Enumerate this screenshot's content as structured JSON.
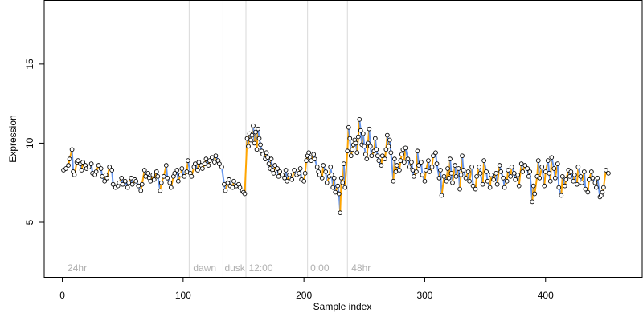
{
  "chart_data": {
    "type": "scatter",
    "xlabel": "Sample index",
    "ylabel": "Expression",
    "xlim": [
      -15,
      480
    ],
    "ylim": [
      1.5,
      19
    ],
    "x_ticks": [
      0,
      100,
      200,
      300,
      400
    ],
    "y_ticks": [
      5,
      10,
      15
    ],
    "colors": {
      "up": "#FFA500",
      "down": "#6495ED",
      "flat": "#A0A0A0",
      "point_fill": "#FFFFFF",
      "point_stroke": "#000000",
      "vline": "#D9D9D9",
      "annotation": "#B0B0B0"
    },
    "vertical_lines": [
      105,
      133,
      152,
      203,
      236
    ],
    "annotations": [
      {
        "x": 3,
        "label": "24hr"
      },
      {
        "x": 107,
        "label": "dawn"
      },
      {
        "x": 133,
        "label": "dusk"
      },
      {
        "x": 153,
        "label": "12:00"
      },
      {
        "x": 204,
        "label": "0:00"
      },
      {
        "x": 238,
        "label": "48hr"
      }
    ],
    "points": [
      [
        1,
        8.3
      ],
      [
        3,
        8.4
      ],
      [
        5,
        8.6
      ],
      [
        6,
        9.0
      ],
      [
        8,
        9.6
      ],
      [
        9,
        8.2
      ],
      [
        10,
        8.0
      ],
      [
        12,
        8.8
      ],
      [
        13,
        8.9
      ],
      [
        15,
        8.7
      ],
      [
        16,
        8.3
      ],
      [
        17,
        8.8
      ],
      [
        19,
        8.6
      ],
      [
        20,
        8.4
      ],
      [
        22,
        8.5
      ],
      [
        24,
        8.7
      ],
      [
        25,
        8.1
      ],
      [
        27,
        8.0
      ],
      [
        28,
        8.2
      ],
      [
        30,
        8.6
      ],
      [
        32,
        8.4
      ],
      [
        33,
        7.9
      ],
      [
        35,
        7.6
      ],
      [
        36,
        8.0
      ],
      [
        37,
        7.8
      ],
      [
        39,
        8.5
      ],
      [
        41,
        8.3
      ],
      [
        42,
        7.4
      ],
      [
        44,
        7.2
      ],
      [
        46,
        7.3
      ],
      [
        47,
        7.5
      ],
      [
        49,
        7.8
      ],
      [
        50,
        7.4
      ],
      [
        52,
        7.6
      ],
      [
        54,
        7.2
      ],
      [
        55,
        7.5
      ],
      [
        57,
        7.8
      ],
      [
        58,
        7.4
      ],
      [
        60,
        7.7
      ],
      [
        61,
        7.6
      ],
      [
        63,
        7.3
      ],
      [
        65,
        7.0
      ],
      [
        66,
        7.4
      ],
      [
        68,
        8.3
      ],
      [
        69,
        7.9
      ],
      [
        71,
        8.1
      ],
      [
        72,
        7.8
      ],
      [
        73,
        7.6
      ],
      [
        75,
        8.0
      ],
      [
        76,
        7.7
      ],
      [
        78,
        8.2
      ],
      [
        79,
        7.9
      ],
      [
        81,
        7.0
      ],
      [
        82,
        7.5
      ],
      [
        84,
        7.9
      ],
      [
        86,
        8.6
      ],
      [
        87,
        7.8
      ],
      [
        89,
        7.5
      ],
      [
        90,
        7.2
      ],
      [
        92,
        7.9
      ],
      [
        93,
        8.1
      ],
      [
        95,
        8.3
      ],
      [
        96,
        7.6
      ],
      [
        98,
        8.0
      ],
      [
        99,
        8.4
      ],
      [
        101,
        7.9
      ],
      [
        103,
        8.2
      ],
      [
        104,
        8.9
      ],
      [
        106,
        8.1
      ],
      [
        107,
        7.9
      ],
      [
        109,
        8.5
      ],
      [
        110,
        8.7
      ],
      [
        112,
        8.3
      ],
      [
        113,
        8.8
      ],
      [
        115,
        8.6
      ],
      [
        116,
        8.4
      ],
      [
        118,
        8.7
      ],
      [
        119,
        9.0
      ],
      [
        121,
        8.6
      ],
      [
        122,
        8.9
      ],
      [
        124,
        9.1
      ],
      [
        126,
        8.8
      ],
      [
        127,
        9.2
      ],
      [
        129,
        8.9
      ],
      [
        130,
        8.7
      ],
      [
        132,
        8.5
      ],
      [
        134,
        7.4
      ],
      [
        135,
        7.0
      ],
      [
        137,
        7.5
      ],
      [
        138,
        7.7
      ],
      [
        139,
        7.3
      ],
      [
        141,
        7.2
      ],
      [
        142,
        7.6
      ],
      [
        144,
        7.3
      ],
      [
        146,
        7.4
      ],
      [
        147,
        7.2
      ],
      [
        149,
        7.0
      ],
      [
        150,
        6.9
      ],
      [
        151,
        6.8
      ],
      [
        153,
        10.3
      ],
      [
        154,
        9.8
      ],
      [
        155,
        10.6
      ],
      [
        156,
        10.2
      ],
      [
        157,
        10.5
      ],
      [
        158,
        11.1
      ],
      [
        159,
        10.0
      ],
      [
        160,
        10.7
      ],
      [
        161,
        9.6
      ],
      [
        162,
        10.9
      ],
      [
        163,
        10.3
      ],
      [
        164,
        9.9
      ],
      [
        165,
        9.5
      ],
      [
        166,
        9.3
      ],
      [
        168,
        9.0
      ],
      [
        169,
        9.4
      ],
      [
        170,
        9.1
      ],
      [
        171,
        8.7
      ],
      [
        172,
        8.4
      ],
      [
        173,
        9.0
      ],
      [
        174,
        8.3
      ],
      [
        175,
        8.1
      ],
      [
        176,
        8.6
      ],
      [
        178,
        8.4
      ],
      [
        179,
        7.9
      ],
      [
        180,
        8.2
      ],
      [
        182,
        8.0
      ],
      [
        184,
        7.8
      ],
      [
        185,
        8.3
      ],
      [
        186,
        7.6
      ],
      [
        188,
        8.0
      ],
      [
        190,
        7.7
      ],
      [
        192,
        8.3
      ],
      [
        194,
        8.0
      ],
      [
        196,
        8.1
      ],
      [
        197,
        8.4
      ],
      [
        198,
        7.7
      ],
      [
        200,
        7.6
      ],
      [
        201,
        8.1
      ],
      [
        202,
        8.9
      ],
      [
        203,
        9.2
      ],
      [
        204,
        9.4
      ],
      [
        205,
        9.1
      ],
      [
        206,
        8.9
      ],
      [
        208,
        9.3
      ],
      [
        209,
        9.0
      ],
      [
        211,
        8.5
      ],
      [
        212,
        8.2
      ],
      [
        213,
        8.0
      ],
      [
        215,
        7.8
      ],
      [
        216,
        8.6
      ],
      [
        218,
        8.2
      ],
      [
        219,
        7.5
      ],
      [
        221,
        7.9
      ],
      [
        222,
        8.5
      ],
      [
        223,
        8.0
      ],
      [
        224,
        7.2
      ],
      [
        225,
        7.8
      ],
      [
        226,
        6.9
      ],
      [
        228,
        7.3
      ],
      [
        229,
        6.8
      ],
      [
        230,
        5.6
      ],
      [
        231,
        7.8
      ],
      [
        232,
        7.5
      ],
      [
        233,
        8.7
      ],
      [
        234,
        7.2
      ],
      [
        236,
        9.5
      ],
      [
        237,
        11.0
      ],
      [
        238,
        10.3
      ],
      [
        239,
        9.2
      ],
      [
        240,
        9.6
      ],
      [
        241,
        9.9
      ],
      [
        242,
        10.2
      ],
      [
        243,
        10.0
      ],
      [
        244,
        9.4
      ],
      [
        245,
        10.4
      ],
      [
        246,
        11.5
      ],
      [
        247,
        10.8
      ],
      [
        248,
        9.9
      ],
      [
        249,
        10.6
      ],
      [
        250,
        9.8
      ],
      [
        251,
        9.3
      ],
      [
        252,
        9.0
      ],
      [
        253,
        10.0
      ],
      [
        254,
        10.9
      ],
      [
        255,
        9.8
      ],
      [
        256,
        9.2
      ],
      [
        258,
        9.5
      ],
      [
        259,
        10.3
      ],
      [
        260,
        9.6
      ],
      [
        261,
        9.2
      ],
      [
        262,
        8.9
      ],
      [
        264,
        8.6
      ],
      [
        265,
        9.2
      ],
      [
        267,
        9.0
      ],
      [
        268,
        9.6
      ],
      [
        269,
        10.5
      ],
      [
        270,
        9.8
      ],
      [
        271,
        10.2
      ],
      [
        272,
        9.4
      ],
      [
        274,
        7.6
      ],
      [
        275,
        9.0
      ],
      [
        276,
        8.2
      ],
      [
        277,
        8.6
      ],
      [
        279,
        8.3
      ],
      [
        280,
        8.9
      ],
      [
        281,
        9.3
      ],
      [
        282,
        9.6
      ],
      [
        283,
        8.8
      ],
      [
        284,
        9.7
      ],
      [
        286,
        9.0
      ],
      [
        287,
        8.5
      ],
      [
        289,
        8.8
      ],
      [
        290,
        8.3
      ],
      [
        291,
        7.9
      ],
      [
        293,
        8.2
      ],
      [
        294,
        9.5
      ],
      [
        295,
        8.6
      ],
      [
        297,
        8.8
      ],
      [
        298,
        8.0
      ],
      [
        300,
        7.6
      ],
      [
        301,
        8.3
      ],
      [
        303,
        8.9
      ],
      [
        304,
        8.2
      ],
      [
        306,
        8.5
      ],
      [
        307,
        9.2
      ],
      [
        309,
        9.4
      ],
      [
        310,
        8.7
      ],
      [
        312,
        7.8
      ],
      [
        313,
        8.3
      ],
      [
        314,
        6.7
      ],
      [
        316,
        7.9
      ],
      [
        318,
        7.6
      ],
      [
        319,
        8.4
      ],
      [
        320,
        7.8
      ],
      [
        321,
        9.0
      ],
      [
        322,
        8.1
      ],
      [
        323,
        7.5
      ],
      [
        325,
        8.6
      ],
      [
        326,
        7.9
      ],
      [
        328,
        8.4
      ],
      [
        329,
        7.1
      ],
      [
        330,
        8.0
      ],
      [
        331,
        9.2
      ],
      [
        332,
        8.3
      ],
      [
        334,
        7.8
      ],
      [
        336,
        8.2
      ],
      [
        337,
        7.6
      ],
      [
        339,
        8.5
      ],
      [
        340,
        7.3
      ],
      [
        342,
        7.1
      ],
      [
        343,
        7.9
      ],
      [
        345,
        8.5
      ],
      [
        346,
        8.1
      ],
      [
        348,
        7.4
      ],
      [
        349,
        8.9
      ],
      [
        351,
        8.2
      ],
      [
        352,
        7.6
      ],
      [
        354,
        7.2
      ],
      [
        355,
        8.0
      ],
      [
        357,
        7.7
      ],
      [
        359,
        8.1
      ],
      [
        360,
        7.4
      ],
      [
        362,
        8.6
      ],
      [
        363,
        8.2
      ],
      [
        365,
        7.8
      ],
      [
        366,
        7.2
      ],
      [
        368,
        7.6
      ],
      [
        369,
        8.3
      ],
      [
        371,
        7.9
      ],
      [
        372,
        8.5
      ],
      [
        374,
        8.1
      ],
      [
        375,
        7.7
      ],
      [
        377,
        8.0
      ],
      [
        378,
        7.3
      ],
      [
        380,
        8.7
      ],
      [
        381,
        8.2
      ],
      [
        383,
        8.6
      ],
      [
        385,
        8.4
      ],
      [
        386,
        7.9
      ],
      [
        387,
        8.2
      ],
      [
        389,
        6.3
      ],
      [
        390,
        7.3
      ],
      [
        391,
        6.8
      ],
      [
        393,
        7.9
      ],
      [
        394,
        8.9
      ],
      [
        395,
        7.8
      ],
      [
        397,
        8.5
      ],
      [
        399,
        7.3
      ],
      [
        400,
        8.2
      ],
      [
        402,
        8.9
      ],
      [
        403,
        8.1
      ],
      [
        404,
        7.6
      ],
      [
        405,
        9.1
      ],
      [
        407,
        8.4
      ],
      [
        408,
        7.8
      ],
      [
        410,
        8.7
      ],
      [
        411,
        7.2
      ],
      [
        413,
        6.7
      ],
      [
        414,
        7.9
      ],
      [
        416,
        7.3
      ],
      [
        417,
        7.7
      ],
      [
        419,
        8.3
      ],
      [
        420,
        7.9
      ],
      [
        421,
        8.2
      ],
      [
        423,
        7.6
      ],
      [
        424,
        8.0
      ],
      [
        426,
        7.4
      ],
      [
        427,
        8.5
      ],
      [
        429,
        7.9
      ],
      [
        430,
        7.5
      ],
      [
        432,
        8.2
      ],
      [
        433,
        7.1
      ],
      [
        435,
        6.9
      ],
      [
        436,
        7.7
      ],
      [
        438,
        8.2
      ],
      [
        439,
        7.8
      ],
      [
        441,
        7.5
      ],
      [
        442,
        7.2
      ],
      [
        443,
        7.8
      ],
      [
        445,
        6.6
      ],
      [
        446,
        6.7
      ],
      [
        447,
        6.9
      ],
      [
        448,
        7.2
      ],
      [
        450,
        8.3
      ],
      [
        452,
        8.1
      ]
    ]
  }
}
